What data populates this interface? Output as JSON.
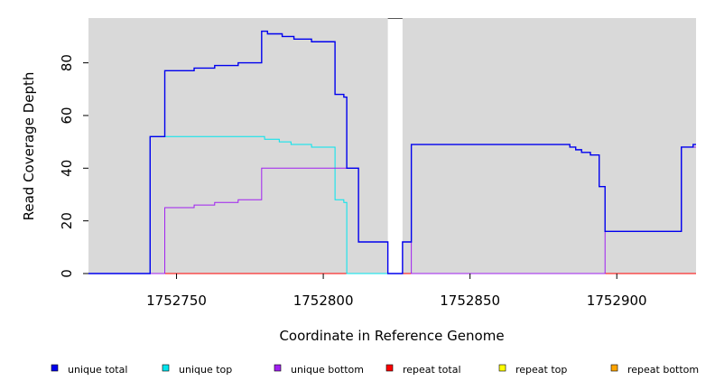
{
  "chart_data": {
    "type": "line",
    "title": "",
    "xlabel": "Coordinate in Reference Genome",
    "ylabel": "Read Coverage Depth",
    "xlim": [
      1752720,
      1752927
    ],
    "ylim": [
      0,
      97
    ],
    "x_ticks": [
      1752750,
      1752800,
      1752850,
      1752900
    ],
    "y_ticks": [
      0,
      20,
      40,
      60,
      80
    ],
    "gaps": [
      [
        1752822,
        1752827
      ]
    ],
    "grid": false,
    "legend_position": "bottom",
    "series": [
      {
        "name": "unique total",
        "color": "#0000ee",
        "points": [
          [
            1752720,
            0
          ],
          [
            1752741,
            0
          ],
          [
            1752741,
            52
          ],
          [
            1752746,
            52
          ],
          [
            1752746,
            77
          ],
          [
            1752756,
            77
          ],
          [
            1752756,
            78
          ],
          [
            1752763,
            78
          ],
          [
            1752763,
            79
          ],
          [
            1752771,
            79
          ],
          [
            1752771,
            80
          ],
          [
            1752779,
            80
          ],
          [
            1752779,
            92
          ],
          [
            1752781,
            92
          ],
          [
            1752781,
            91
          ],
          [
            1752786,
            91
          ],
          [
            1752786,
            90
          ],
          [
            1752790,
            90
          ],
          [
            1752790,
            89
          ],
          [
            1752796,
            89
          ],
          [
            1752796,
            88
          ],
          [
            1752804,
            88
          ],
          [
            1752804,
            68
          ],
          [
            1752807,
            68
          ],
          [
            1752807,
            67
          ],
          [
            1752808,
            67
          ],
          [
            1752808,
            40
          ],
          [
            1752812,
            40
          ],
          [
            1752812,
            12
          ],
          [
            1752822,
            12
          ],
          [
            1752822,
            0
          ],
          [
            1752827,
            0
          ],
          [
            1752827,
            12
          ],
          [
            1752830,
            12
          ],
          [
            1752830,
            49
          ],
          [
            1752884,
            49
          ],
          [
            1752884,
            48
          ],
          [
            1752886,
            48
          ],
          [
            1752886,
            47
          ],
          [
            1752888,
            47
          ],
          [
            1752888,
            46
          ],
          [
            1752891,
            46
          ],
          [
            1752891,
            45
          ],
          [
            1752894,
            45
          ],
          [
            1752894,
            33
          ],
          [
            1752896,
            33
          ],
          [
            1752896,
            16
          ],
          [
            1752922,
            16
          ],
          [
            1752922,
            48
          ],
          [
            1752926,
            48
          ],
          [
            1752926,
            49
          ],
          [
            1752927,
            49
          ]
        ]
      },
      {
        "name": "unique top",
        "color": "#00e5ee",
        "points": [
          [
            1752720,
            0
          ],
          [
            1752741,
            0
          ],
          [
            1752741,
            52
          ],
          [
            1752780,
            52
          ],
          [
            1752780,
            51
          ],
          [
            1752785,
            51
          ],
          [
            1752785,
            50
          ],
          [
            1752789,
            50
          ],
          [
            1752789,
            49
          ],
          [
            1752796,
            49
          ],
          [
            1752796,
            48
          ],
          [
            1752804,
            48
          ],
          [
            1752804,
            28
          ],
          [
            1752807,
            28
          ],
          [
            1752807,
            27
          ],
          [
            1752808,
            27
          ],
          [
            1752808,
            0
          ],
          [
            1752822,
            0
          ]
        ]
      },
      {
        "name": "unique bottom",
        "color": "#a020f0",
        "points": [
          [
            1752720,
            0
          ],
          [
            1752746,
            0
          ],
          [
            1752746,
            25
          ],
          [
            1752756,
            25
          ],
          [
            1752756,
            26
          ],
          [
            1752763,
            26
          ],
          [
            1752763,
            27
          ],
          [
            1752771,
            27
          ],
          [
            1752771,
            28
          ],
          [
            1752779,
            28
          ],
          [
            1752779,
            40
          ],
          [
            1752812,
            40
          ],
          [
            1752812,
            12
          ],
          [
            1752822,
            12
          ],
          [
            1752822,
            0
          ],
          [
            1752827,
            0
          ],
          [
            1752827,
            12
          ],
          [
            1752830,
            12
          ],
          [
            1752830,
            0
          ],
          [
            1752896,
            0
          ],
          [
            1752896,
            16
          ],
          [
            1752922,
            16
          ],
          [
            1752922,
            48
          ],
          [
            1752927,
            48
          ]
        ]
      },
      {
        "name": "repeat total",
        "color": "#ff0000",
        "points": [
          [
            1752720,
            0
          ],
          [
            1752927,
            0
          ]
        ]
      },
      {
        "name": "repeat top",
        "color": "#ffff00",
        "points": [
          [
            1752720,
            0
          ],
          [
            1752927,
            0
          ]
        ]
      },
      {
        "name": "repeat bottom",
        "color": "#ffa500",
        "points": [
          [
            1752720,
            0
          ],
          [
            1752927,
            0
          ]
        ]
      }
    ]
  }
}
